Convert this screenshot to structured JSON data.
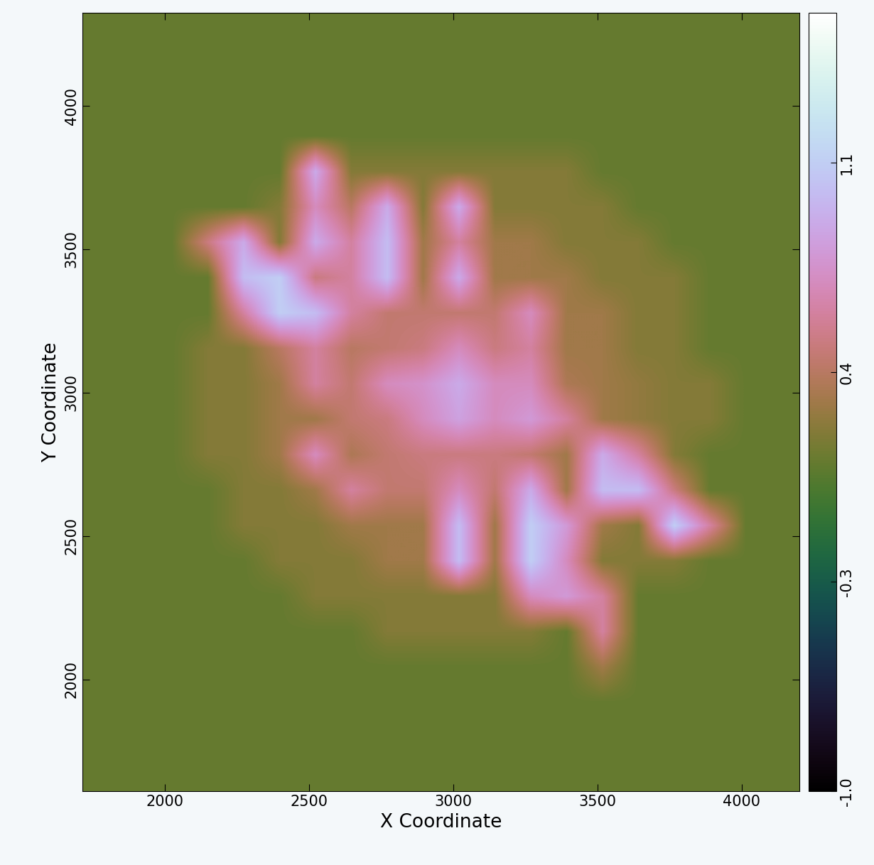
{
  "chart_data": {
    "type": "heatmap",
    "xlabel": "X Coordinate",
    "ylabel": "Y Coordinate",
    "xlim": [
      1712,
      4202
    ],
    "ylim": [
      1609,
      4324
    ],
    "xticks": [
      2000,
      2500,
      3000,
      3500,
      4000
    ],
    "yticks": [
      2000,
      2500,
      3000,
      3500,
      4000
    ],
    "colorbar_range": [
      -1.0,
      1.6
    ],
    "colorbar_ticks": [
      -1.0,
      -0.3,
      0.4,
      1.1
    ],
    "cells": [
      [
        0.1,
        0.1,
        0.1,
        0.1,
        0.1,
        0.1,
        0.1,
        0.1,
        0.1,
        0.1,
        0.1,
        0.1,
        0.1,
        0.1,
        0.1,
        0.1,
        0.1,
        0.1,
        0.1,
        0.1
      ],
      [
        0.1,
        0.1,
        0.1,
        0.1,
        0.1,
        0.1,
        0.1,
        0.1,
        0.1,
        0.1,
        0.1,
        0.1,
        0.1,
        0.1,
        0.1,
        0.1,
        0.1,
        0.1,
        0.1,
        0.1
      ],
      [
        0.1,
        0.1,
        0.1,
        0.1,
        0.1,
        0.1,
        0.1,
        0.1,
        0.1,
        0.1,
        0.1,
        0.1,
        0.1,
        0.1,
        0.1,
        0.1,
        0.1,
        0.1,
        0.1,
        0.1
      ],
      [
        0.1,
        0.1,
        0.1,
        0.1,
        0.1,
        0.1,
        0.1,
        0.1,
        0.1,
        0.1,
        0.1,
        0.1,
        0.1,
        0.1,
        0.1,
        0.1,
        0.1,
        0.1,
        0.1,
        0.1
      ],
      [
        0.1,
        0.1,
        0.1,
        0.1,
        0.1,
        0.1,
        0.9,
        0.2,
        0.2,
        0.2,
        0.2,
        0.2,
        0.2,
        0.2,
        0.1,
        0.1,
        0.1,
        0.1,
        0.1,
        0.1
      ],
      [
        0.1,
        0.1,
        0.1,
        0.1,
        0.1,
        0.2,
        0.7,
        0.4,
        0.9,
        0.2,
        0.9,
        0.2,
        0.2,
        0.2,
        0.2,
        0.1,
        0.1,
        0.1,
        0.1,
        0.1
      ],
      [
        0.1,
        0.1,
        0.1,
        0.5,
        0.9,
        0.2,
        0.9,
        0.6,
        1.0,
        0.3,
        0.6,
        0.3,
        0.3,
        0.2,
        0.2,
        0.2,
        0.1,
        0.1,
        0.1,
        0.1
      ],
      [
        0.1,
        0.1,
        0.1,
        0.1,
        1.0,
        1.1,
        0.5,
        0.6,
        1.0,
        0.3,
        0.9,
        0.3,
        0.3,
        0.3,
        0.2,
        0.2,
        0.2,
        0.1,
        0.1,
        0.1
      ],
      [
        0.1,
        0.1,
        0.1,
        0.1,
        0.6,
        1.1,
        1.0,
        0.6,
        0.45,
        0.45,
        0.45,
        0.45,
        0.7,
        0.3,
        0.3,
        0.2,
        0.2,
        0.1,
        0.1,
        0.1
      ],
      [
        0.1,
        0.1,
        0.1,
        0.2,
        0.2,
        0.4,
        0.6,
        0.4,
        0.45,
        0.5,
        0.7,
        0.5,
        0.6,
        0.3,
        0.3,
        0.2,
        0.2,
        0.1,
        0.1,
        0.1
      ],
      [
        0.1,
        0.1,
        0.1,
        0.2,
        0.2,
        0.3,
        0.6,
        0.45,
        0.7,
        0.75,
        0.9,
        0.7,
        0.7,
        0.35,
        0.3,
        0.25,
        0.2,
        0.2,
        0.1,
        0.1
      ],
      [
        0.1,
        0.1,
        0.1,
        0.2,
        0.2,
        0.3,
        0.3,
        0.45,
        0.5,
        0.7,
        0.85,
        0.7,
        0.8,
        0.6,
        0.3,
        0.25,
        0.2,
        0.2,
        0.1,
        0.1
      ],
      [
        0.1,
        0.1,
        0.1,
        0.2,
        0.2,
        0.3,
        0.7,
        0.35,
        0.45,
        0.5,
        0.5,
        0.5,
        0.45,
        0.3,
        0.9,
        0.6,
        0.2,
        0.1,
        0.1,
        0.1
      ],
      [
        0.1,
        0.1,
        0.1,
        0.1,
        0.2,
        0.2,
        0.3,
        0.6,
        0.45,
        0.45,
        0.7,
        0.45,
        0.9,
        0.3,
        1.0,
        1.0,
        0.5,
        0.1,
        0.1,
        0.1
      ],
      [
        0.1,
        0.1,
        0.1,
        0.1,
        0.2,
        0.2,
        0.2,
        0.3,
        0.3,
        0.3,
        1.0,
        0.3,
        1.1,
        0.8,
        0.3,
        0.2,
        1.1,
        0.6,
        0.1,
        0.1
      ],
      [
        0.1,
        0.1,
        0.1,
        0.1,
        0.1,
        0.2,
        0.2,
        0.2,
        0.3,
        0.3,
        1.0,
        0.3,
        1.1,
        0.7,
        0.2,
        0.2,
        0.2,
        0.1,
        0.1,
        0.1
      ],
      [
        0.1,
        0.1,
        0.1,
        0.1,
        0.1,
        0.1,
        0.2,
        0.2,
        0.2,
        0.2,
        0.2,
        0.2,
        0.7,
        0.8,
        0.6,
        0.1,
        0.1,
        0.1,
        0.1,
        0.1
      ],
      [
        0.1,
        0.1,
        0.1,
        0.1,
        0.1,
        0.1,
        0.1,
        0.1,
        0.2,
        0.2,
        0.2,
        0.2,
        0.2,
        0.1,
        0.6,
        0.1,
        0.1,
        0.1,
        0.1,
        0.1
      ],
      [
        0.1,
        0.1,
        0.1,
        0.1,
        0.1,
        0.1,
        0.1,
        0.1,
        0.1,
        0.1,
        0.1,
        0.1,
        0.1,
        0.1,
        0.3,
        0.1,
        0.1,
        0.1,
        0.1,
        0.1
      ],
      [
        0.1,
        0.1,
        0.1,
        0.1,
        0.1,
        0.1,
        0.1,
        0.1,
        0.1,
        0.1,
        0.1,
        0.1,
        0.1,
        0.1,
        0.1,
        0.1,
        0.1,
        0.1,
        0.1,
        0.1
      ],
      [
        0.1,
        0.1,
        0.1,
        0.1,
        0.1,
        0.1,
        0.1,
        0.1,
        0.1,
        0.1,
        0.1,
        0.1,
        0.1,
        0.1,
        0.1,
        0.1,
        0.1,
        0.1,
        0.1,
        0.1
      ],
      [
        0.1,
        0.1,
        0.1,
        0.1,
        0.1,
        0.1,
        0.1,
        0.1,
        0.1,
        0.1,
        0.1,
        0.1,
        0.1,
        0.1,
        0.1,
        0.1,
        0.1,
        0.1,
        0.1,
        0.1
      ]
    ]
  }
}
